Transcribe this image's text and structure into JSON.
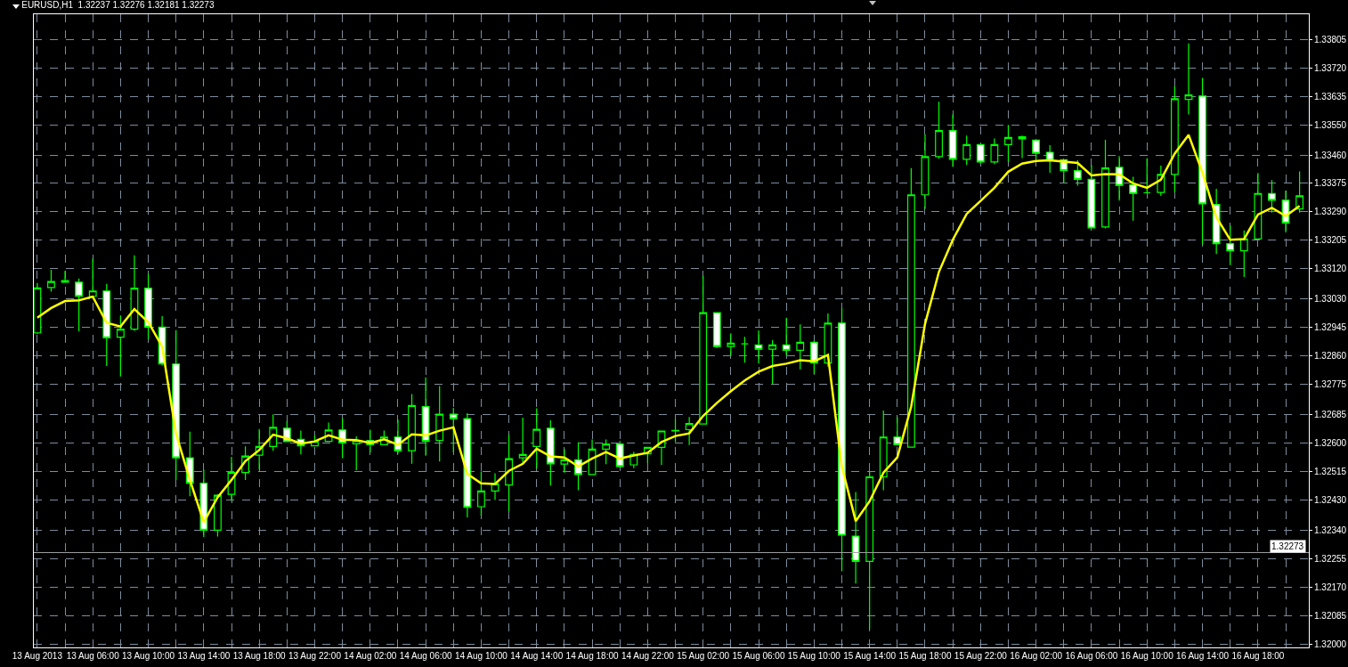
{
  "chart_data": {
    "type": "candlestick",
    "title": "EURUSD,H1  1.32237 1.32276 1.32181 1.32273",
    "x": [
      "2013-08-13T02:00",
      "2013-08-13T03:00",
      "2013-08-13T04:00",
      "2013-08-13T05:00",
      "2013-08-13T06:00",
      "2013-08-13T07:00",
      "2013-08-13T08:00",
      "2013-08-13T09:00",
      "2013-08-13T10:00",
      "2013-08-13T11:00",
      "2013-08-13T12:00",
      "2013-08-13T13:00",
      "2013-08-13T14:00",
      "2013-08-13T15:00",
      "2013-08-13T16:00",
      "2013-08-13T17:00",
      "2013-08-13T18:00",
      "2013-08-13T19:00",
      "2013-08-13T20:00",
      "2013-08-13T21:00",
      "2013-08-13T22:00",
      "2013-08-13T23:00",
      "2013-08-14T00:00",
      "2013-08-14T01:00",
      "2013-08-14T02:00",
      "2013-08-14T03:00",
      "2013-08-14T04:00",
      "2013-08-14T05:00",
      "2013-08-14T06:00",
      "2013-08-14T07:00",
      "2013-08-14T08:00",
      "2013-08-14T09:00",
      "2013-08-14T10:00",
      "2013-08-14T11:00",
      "2013-08-14T12:00",
      "2013-08-14T13:00",
      "2013-08-14T14:00",
      "2013-08-14T15:00",
      "2013-08-14T16:00",
      "2013-08-14T17:00",
      "2013-08-14T18:00",
      "2013-08-14T19:00",
      "2013-08-14T20:00",
      "2013-08-14T21:00",
      "2013-08-14T22:00",
      "2013-08-14T23:00",
      "2013-08-15T00:00",
      "2013-08-15T01:00",
      "2013-08-15T02:00",
      "2013-08-15T03:00",
      "2013-08-15T04:00",
      "2013-08-15T05:00",
      "2013-08-15T06:00",
      "2013-08-15T07:00",
      "2013-08-15T08:00",
      "2013-08-15T09:00",
      "2013-08-15T10:00",
      "2013-08-15T11:00",
      "2013-08-15T12:00",
      "2013-08-15T13:00",
      "2013-08-15T14:00",
      "2013-08-15T15:00",
      "2013-08-15T16:00",
      "2013-08-15T17:00",
      "2013-08-15T18:00",
      "2013-08-15T19:00",
      "2013-08-15T20:00",
      "2013-08-15T21:00",
      "2013-08-15T22:00",
      "2013-08-15T23:00",
      "2013-08-16T00:00",
      "2013-08-16T01:00",
      "2013-08-16T02:00",
      "2013-08-16T03:00",
      "2013-08-16T04:00",
      "2013-08-16T05:00",
      "2013-08-16T06:00",
      "2013-08-16T07:00",
      "2013-08-16T08:00",
      "2013-08-16T09:00",
      "2013-08-16T10:00",
      "2013-08-16T11:00",
      "2013-08-16T12:00",
      "2013-08-16T13:00",
      "2013-08-16T14:00",
      "2013-08-16T15:00",
      "2013-08-16T16:00",
      "2013-08-16T17:00",
      "2013-08-16T18:00",
      "2013-08-16T19:00",
      "2013-08-16T20:00",
      "2013-08-16T21:00"
    ],
    "series": [
      {
        "type": "line",
        "color": "#ffff00",
        "values": [
          1.32974,
          1.33003,
          1.33024,
          1.33026,
          1.33037,
          1.32959,
          1.32948,
          1.33,
          1.32961,
          1.32888,
          1.32628,
          1.3249,
          1.32364,
          1.32438,
          1.3249,
          1.32546,
          1.32579,
          1.32625,
          1.32614,
          1.32598,
          1.32605,
          1.32623,
          1.3261,
          1.32609,
          1.326,
          1.32611,
          1.32595,
          1.32626,
          1.32623,
          1.32637,
          1.32647,
          1.32508,
          1.3248,
          1.32478,
          1.32517,
          1.32538,
          1.32583,
          1.3256,
          1.32557,
          1.3253,
          1.32554,
          1.32573,
          1.32554,
          1.32563,
          1.32571,
          1.32603,
          1.32621,
          1.32629,
          1.32681,
          1.3272,
          1.32755,
          1.32787,
          1.32813,
          1.3283,
          1.32837,
          1.32847,
          1.32844,
          1.32863,
          1.3253,
          1.32367,
          1.32426,
          1.32512,
          1.32557,
          1.32709,
          1.32956,
          1.33111,
          1.33207,
          1.33284,
          1.33323,
          1.33362,
          1.3341,
          1.33434,
          1.33442,
          1.33444,
          1.3344,
          1.33436,
          1.33399,
          1.33403,
          1.33402,
          1.33375,
          1.33362,
          1.33386,
          1.33464,
          1.3352,
          1.33407,
          1.33274,
          1.33207,
          1.33209,
          1.33282,
          1.33302,
          1.33278,
          1.33308
        ]
      },
      {
        "color": "#00ff00",
        "ohlc": [
          [
            1.32929,
            1.33078,
            1.32925,
            1.33063
          ],
          [
            1.33064,
            1.33117,
            1.33052,
            1.33082
          ],
          [
            1.33085,
            1.33114,
            1.3308,
            1.3308
          ],
          [
            1.3308,
            1.33091,
            1.32934,
            1.33038
          ],
          [
            1.33038,
            1.3315,
            1.33038,
            1.33054
          ],
          [
            1.33054,
            1.33075,
            1.3283,
            1.32914
          ],
          [
            1.32916,
            1.32981,
            1.32799,
            1.3294
          ],
          [
            1.3294,
            1.3316,
            1.32935,
            1.33062
          ],
          [
            1.33062,
            1.33104,
            1.32911,
            1.32946
          ],
          [
            1.32946,
            1.32979,
            1.32832,
            1.32836
          ],
          [
            1.32836,
            1.32937,
            1.3249,
            1.32556
          ],
          [
            1.32556,
            1.32634,
            1.32441,
            1.3248
          ],
          [
            1.3248,
            1.3252,
            1.32319,
            1.3234
          ],
          [
            1.3234,
            1.32447,
            1.32321,
            1.32444
          ],
          [
            1.32447,
            1.32559,
            1.32428,
            1.32512
          ],
          [
            1.32512,
            1.3259,
            1.3249,
            1.32561
          ],
          [
            1.32564,
            1.32642,
            1.32521,
            1.3259
          ],
          [
            1.3259,
            1.32686,
            1.32577,
            1.32647
          ],
          [
            1.32644,
            1.32666,
            1.32604,
            1.32604
          ],
          [
            1.32611,
            1.32637,
            1.32566,
            1.32592
          ],
          [
            1.32592,
            1.32624,
            1.32591,
            1.32605
          ],
          [
            1.32605,
            1.32661,
            1.32605,
            1.32639
          ],
          [
            1.32639,
            1.32674,
            1.32555,
            1.326
          ],
          [
            1.32598,
            1.3262,
            1.32519,
            1.32607
          ],
          [
            1.32608,
            1.3264,
            1.32572,
            1.32595
          ],
          [
            1.32595,
            1.32637,
            1.32595,
            1.32618
          ],
          [
            1.32618,
            1.3267,
            1.32568,
            1.32577
          ],
          [
            1.32577,
            1.32746,
            1.32538,
            1.32712
          ],
          [
            1.32709,
            1.32796,
            1.32562,
            1.32605
          ],
          [
            1.32608,
            1.3277,
            1.32545,
            1.32686
          ],
          [
            1.32686,
            1.32705,
            1.32572,
            1.32673
          ],
          [
            1.32673,
            1.32689,
            1.32378,
            1.32408
          ],
          [
            1.3241,
            1.32515,
            1.32383,
            1.32457
          ],
          [
            1.32457,
            1.3251,
            1.3243,
            1.32478
          ],
          [
            1.32475,
            1.32625,
            1.32396,
            1.32553
          ],
          [
            1.32556,
            1.32676,
            1.32538,
            1.32566
          ],
          [
            1.3259,
            1.32704,
            1.32524,
            1.32641
          ],
          [
            1.32644,
            1.32668,
            1.32473,
            1.32538
          ],
          [
            1.32537,
            1.32582,
            1.32512,
            1.3255
          ],
          [
            1.3255,
            1.32602,
            1.32459,
            1.32506
          ],
          [
            1.32506,
            1.32611,
            1.32506,
            1.32582
          ],
          [
            1.32582,
            1.32611,
            1.32537,
            1.32597
          ],
          [
            1.32597,
            1.32606,
            1.32527,
            1.3253
          ],
          [
            1.32535,
            1.32574,
            1.32525,
            1.32566
          ],
          [
            1.32568,
            1.32587,
            1.3254,
            1.32587
          ],
          [
            1.32587,
            1.32636,
            1.32535,
            1.32636
          ],
          [
            1.32636,
            1.32672,
            1.32603,
            1.32638
          ],
          [
            1.3264,
            1.32678,
            1.32594,
            1.32658
          ],
          [
            1.32657,
            1.33099,
            1.32657,
            1.32989
          ],
          [
            1.32989,
            1.32989,
            1.32884,
            1.32888
          ],
          [
            1.32888,
            1.32928,
            1.3286,
            1.32898
          ],
          [
            1.32896,
            1.32917,
            1.3284,
            1.32896
          ],
          [
            1.32893,
            1.32936,
            1.32837,
            1.3288
          ],
          [
            1.3288,
            1.32907,
            1.32776,
            1.32893
          ],
          [
            1.32893,
            1.32974,
            1.32862,
            1.32877
          ],
          [
            1.32877,
            1.32954,
            1.3282,
            1.32901
          ],
          [
            1.32901,
            1.32906,
            1.32807,
            1.32839
          ],
          [
            1.32839,
            1.32987,
            1.32828,
            1.32958
          ],
          [
            1.32958,
            1.33003,
            1.32217,
            1.32325
          ],
          [
            1.32322,
            1.32454,
            1.32181,
            1.32247
          ],
          [
            1.32247,
            1.32514,
            1.32044,
            1.32499
          ],
          [
            1.32499,
            1.32697,
            1.32459,
            1.32618
          ],
          [
            1.32618,
            1.32678,
            1.32595,
            1.32595
          ],
          [
            1.32588,
            1.33421,
            1.32588,
            1.33341
          ],
          [
            1.33341,
            1.33522,
            1.33299,
            1.33455
          ],
          [
            1.33455,
            1.33619,
            1.33449,
            1.33533
          ],
          [
            1.33533,
            1.33581,
            1.33425,
            1.33447
          ],
          [
            1.33447,
            1.33518,
            1.33431,
            1.33491
          ],
          [
            1.33491,
            1.33491,
            1.33436,
            1.33439
          ],
          [
            1.33439,
            1.33509,
            1.33433,
            1.33491
          ],
          [
            1.33491,
            1.3355,
            1.33439,
            1.33512
          ],
          [
            1.33514,
            1.33518,
            1.33451,
            1.33508
          ],
          [
            1.33504,
            1.33507,
            1.33449,
            1.33465
          ],
          [
            1.33468,
            1.33489,
            1.33407,
            1.33444
          ],
          [
            1.33446,
            1.33446,
            1.33377,
            1.33413
          ],
          [
            1.33413,
            1.33444,
            1.33368,
            1.33387
          ],
          [
            1.33387,
            1.33429,
            1.33242,
            1.33242
          ],
          [
            1.33245,
            1.33505,
            1.33241,
            1.33421
          ],
          [
            1.33423,
            1.33457,
            1.33324,
            1.33369
          ],
          [
            1.33371,
            1.33395,
            1.33264,
            1.33345
          ],
          [
            1.33347,
            1.3345,
            1.33347,
            1.33347
          ],
          [
            1.33348,
            1.33428,
            1.33338,
            1.33402
          ],
          [
            1.33402,
            1.33665,
            1.33349,
            1.33628
          ],
          [
            1.33626,
            1.33793,
            1.33581,
            1.33639
          ],
          [
            1.33636,
            1.3369,
            1.33193,
            1.33314
          ],
          [
            1.33312,
            1.33359,
            1.33164,
            1.33195
          ],
          [
            1.33195,
            1.3325,
            1.33131,
            1.33174
          ],
          [
            1.33174,
            1.33235,
            1.33096,
            1.33209
          ],
          [
            1.33209,
            1.33406,
            1.33209,
            1.33345
          ],
          [
            1.33345,
            1.33385,
            1.33288,
            1.33325
          ],
          [
            1.33325,
            1.33354,
            1.33229,
            1.33257
          ],
          [
            1.33299,
            1.33411,
            1.33288,
            1.33338
          ]
        ]
      }
    ],
    "xlim": [
      "2013-08-13T01:45",
      "2013-08-16T21:40"
    ],
    "xticks": [
      {
        "value": "2013-08-13T02:00",
        "label": "13 Aug 2013"
      },
      {
        "value": "2013-08-13T04:00",
        "label": null
      },
      {
        "value": "2013-08-13T06:00",
        "label": "13 Aug 06:00"
      },
      {
        "value": "2013-08-13T08:00",
        "label": null
      },
      {
        "value": "2013-08-13T10:00",
        "label": "13 Aug 10:00"
      },
      {
        "value": "2013-08-13T12:00",
        "label": null
      },
      {
        "value": "2013-08-13T14:00",
        "label": "13 Aug 14:00"
      },
      {
        "value": "2013-08-13T16:00",
        "label": null
      },
      {
        "value": "2013-08-13T18:00",
        "label": "13 Aug 18:00"
      },
      {
        "value": "2013-08-13T20:00",
        "label": null
      },
      {
        "value": "2013-08-13T22:00",
        "label": "13 Aug 22:00"
      },
      {
        "value": "2013-08-14T00:00",
        "label": null
      },
      {
        "value": "2013-08-14T02:00",
        "label": "14 Aug 02:00"
      },
      {
        "value": "2013-08-14T04:00",
        "label": null
      },
      {
        "value": "2013-08-14T06:00",
        "label": "14 Aug 06:00"
      },
      {
        "value": "2013-08-14T08:00",
        "label": null
      },
      {
        "value": "2013-08-14T10:00",
        "label": "14 Aug 10:00"
      },
      {
        "value": "2013-08-14T12:00",
        "label": null
      },
      {
        "value": "2013-08-14T14:00",
        "label": "14 Aug 14:00"
      },
      {
        "value": "2013-08-14T16:00",
        "label": null
      },
      {
        "value": "2013-08-14T18:00",
        "label": "14 Aug 18:00"
      },
      {
        "value": "2013-08-14T20:00",
        "label": null
      },
      {
        "value": "2013-08-14T22:00",
        "label": "14 Aug 22:00"
      },
      {
        "value": "2013-08-15T00:00",
        "label": null
      },
      {
        "value": "2013-08-15T02:00",
        "label": "15 Aug 02:00"
      },
      {
        "value": "2013-08-15T04:00",
        "label": null
      },
      {
        "value": "2013-08-15T06:00",
        "label": "15 Aug 06:00"
      },
      {
        "value": "2013-08-15T08:00",
        "label": null
      },
      {
        "value": "2013-08-15T10:00",
        "label": "15 Aug 10:00"
      },
      {
        "value": "2013-08-15T12:00",
        "label": null
      },
      {
        "value": "2013-08-15T14:00",
        "label": "15 Aug 14:00"
      },
      {
        "value": "2013-08-15T16:00",
        "label": null
      },
      {
        "value": "2013-08-15T18:00",
        "label": "15 Aug 18:00"
      },
      {
        "value": "2013-08-15T20:00",
        "label": null
      },
      {
        "value": "2013-08-15T22:00",
        "label": "15 Aug 22:00"
      },
      {
        "value": "2013-08-16T00:00",
        "label": null
      },
      {
        "value": "2013-08-16T02:00",
        "label": "16 Aug 02:00"
      },
      {
        "value": "2013-08-16T04:00",
        "label": null
      },
      {
        "value": "2013-08-16T06:00",
        "label": "16 Aug 06:00"
      },
      {
        "value": "2013-08-16T08:00",
        "label": null
      },
      {
        "value": "2013-08-16T10:00",
        "label": "16 Aug 10:00"
      },
      {
        "value": "2013-08-16T12:00",
        "label": null
      },
      {
        "value": "2013-08-16T14:00",
        "label": "16 Aug 14:00"
      },
      {
        "value": "2013-08-16T16:00",
        "label": null
      },
      {
        "value": "2013-08-16T18:00",
        "label": "16 Aug 18:00"
      },
      {
        "value": "2013-08-16T20:00",
        "label": null
      }
    ],
    "ylim": [
      1.3199,
      1.3388
    ],
    "yticks": [
      {
        "value": 1.32,
        "label": "1.32000"
      },
      1.32085,
      {
        "value": 1.3217,
        "label": "1.32170"
      },
      1.32255,
      {
        "value": 1.3234,
        "label": "1.32340"
      },
      {
        "value": 1.3243,
        "label": "1.32430"
      },
      1.32515,
      {
        "value": 1.326,
        "label": "1.32600"
      },
      1.32685,
      1.32775,
      {
        "value": 1.3286,
        "label": "1.32860"
      },
      1.32945,
      {
        "value": 1.3303,
        "label": "1.33030"
      },
      {
        "value": 1.3312,
        "label": "1.33120"
      },
      1.33205,
      {
        "value": 1.3329,
        "label": "1.33290"
      },
      1.33375,
      {
        "value": 1.3346,
        "label": "1.33460"
      },
      {
        "value": 1.3355,
        "label": "1.33550"
      },
      1.33635,
      {
        "value": 1.3372,
        "label": "1.33720"
      },
      1.33805
    ],
    "grid": true,
    "ref_lines": [
      {
        "axis": "y",
        "value": 1.32273,
        "label": "1.32273",
        "color": "#a0a0a0"
      }
    ]
  }
}
